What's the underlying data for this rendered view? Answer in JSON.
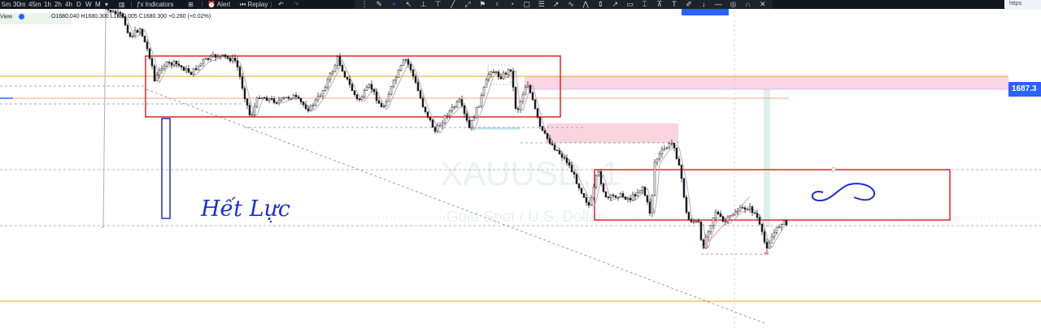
{
  "toolbar": {
    "timeframes": [
      "5m",
      "30m",
      "45m",
      "1h",
      "2h",
      "4h",
      "D",
      "W",
      "M"
    ],
    "indicators_label": "Indicators",
    "alert_label": "Alert",
    "replay_label": "Replay"
  },
  "browser": {
    "tab_text": "https"
  },
  "legend": {
    "interval_label": "View",
    "ohlc": "O1680.040  H1680.300  L1680.005  C1680.300  +0.260 (+0.02%)"
  },
  "price_scale": {
    "current_price": "1687.3"
  },
  "watermark": {
    "symbol": "XAUUSD, 1",
    "description": "Gold Spot / U.S. Dollar"
  },
  "annotations": {
    "handwritten_note": "Hết Lực"
  },
  "colors": {
    "accent": "#2962ff",
    "zone_red": "#e0151b",
    "supply_pink": "#f7c6d6",
    "orange_line": "#f0a30a",
    "candle": "#1c1c1c"
  }
}
